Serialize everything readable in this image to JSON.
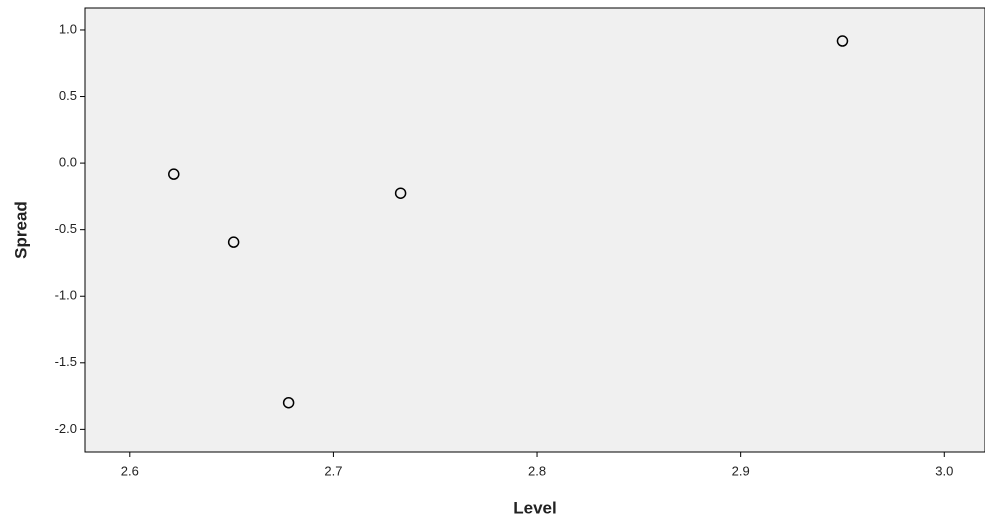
{
  "chart_data": {
    "type": "scatter",
    "x_label": "Level",
    "y_label": "Spread",
    "x": [
      2.6216,
      2.651,
      2.678,
      2.733,
      2.95
    ],
    "values": [
      -0.083,
      -0.594,
      -1.8,
      -0.226,
      0.917
    ],
    "color": "#000000",
    "xlim": [
      2.578,
      3.02
    ],
    "xticks": [
      2.6,
      2.7,
      2.8,
      2.9,
      {
        "value": 3.0,
        "label": "3.0"
      }
    ],
    "ylim": [
      -2.17,
      1.165
    ],
    "yticks": [
      {
        "value": 1.0,
        "label": "1.0"
      },
      0.5,
      {
        "value": 0.0,
        "label": "0.0"
      },
      -0.5,
      {
        "value": -1.0,
        "label": "-1.0"
      },
      -1.5,
      {
        "value": -2.0,
        "label": "-2.0"
      }
    ]
  }
}
